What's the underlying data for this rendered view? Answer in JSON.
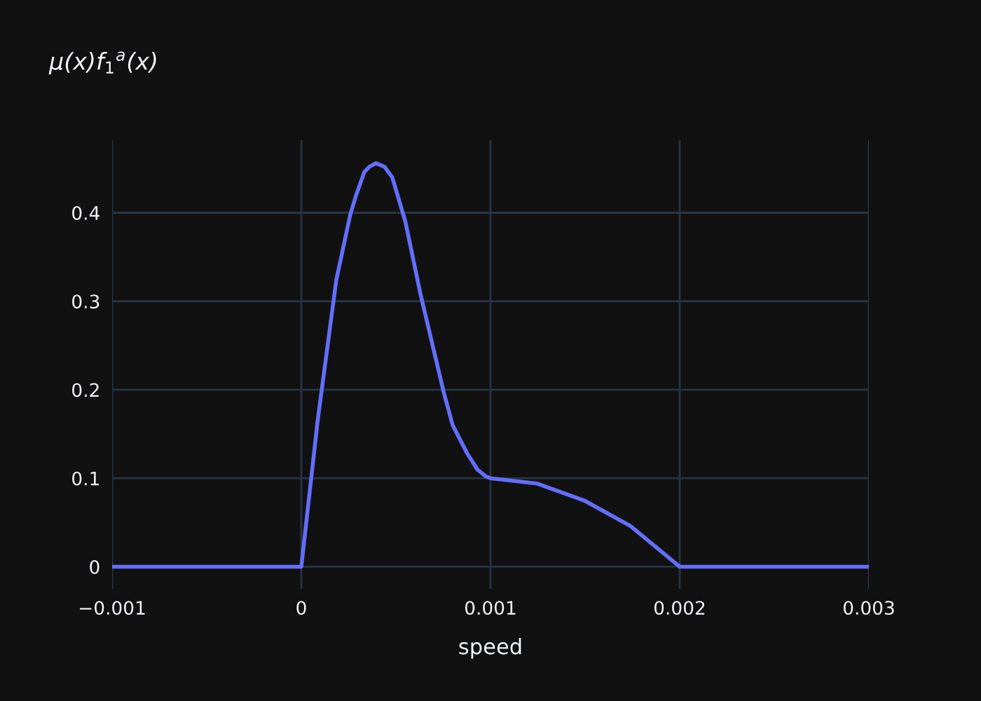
{
  "chart_data": {
    "type": "line",
    "title": "μ(x)f$_{1}$$^{a}$(x)",
    "xlabel": "speed",
    "x": [
      -0.001,
      0,
      8.64e-05,
      0.000185,
      0.000259,
      0.00029,
      0.000333,
      0.00036,
      0.000395,
      0.00044,
      0.000481,
      0.00055,
      0.00063,
      0.000753,
      0.0008,
      0.000877,
      0.00093,
      0.000975,
      0.001,
      0.001247,
      0.001494,
      0.00174,
      0.002,
      0.003
    ],
    "series": [
      {
        "color": "#636efa",
        "values": [
          0,
          0,
          0.165,
          0.324,
          0.398,
          0.42,
          0.446,
          0.452,
          0.456,
          0.452,
          0.44,
          0.39,
          0.308,
          0.197,
          0.16,
          0.128,
          0.11,
          0.102,
          0.1,
          0.094,
          0.075,
          0.046,
          0,
          0
        ]
      }
    ],
    "xlim": [
      -0.001,
      0.003
    ],
    "ylim": [
      -0.025,
      0.482
    ],
    "xticks": [
      {
        "value": -0.001,
        "label": "−0.001"
      },
      0,
      0.001,
      0.002,
      0.003
    ],
    "yticks": [
      0,
      0.1,
      0.2,
      0.3,
      0.4
    ],
    "grid": true,
    "marker": "none",
    "line_style": "solid"
  }
}
